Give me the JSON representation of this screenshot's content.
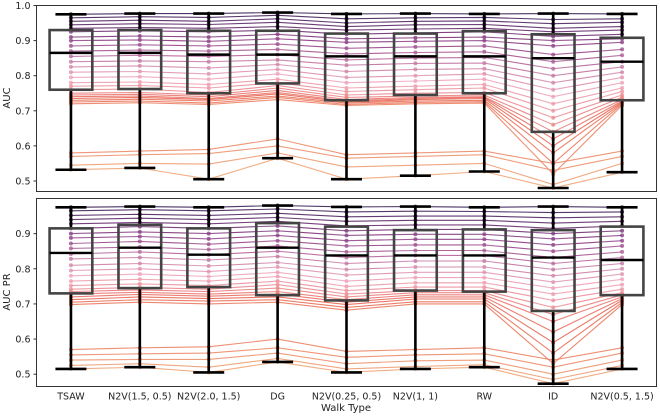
{
  "chart_data": [
    {
      "type": "box+parallel-lines",
      "ylabel": "AUC",
      "xlabel": "",
      "ylim": [
        0.47,
        1.0
      ],
      "yticks": [
        "0.5",
        "0.6",
        "0.7",
        "0.8",
        "0.9",
        "1.0"
      ],
      "categories": [
        "TSAW",
        "N2V(1.5, 0.5)",
        "N2V(2.0, 1.5)",
        "DG",
        "N2V(0.25, 0.5)",
        "N2V(1, 1)",
        "RW",
        "ID",
        "N2V(0.5, 1.5)"
      ],
      "boxes": [
        {
          "min": 0.532,
          "q1": 0.76,
          "median": 0.865,
          "q3": 0.93,
          "max": 0.975
        },
        {
          "min": 0.537,
          "q1": 0.762,
          "median": 0.865,
          "q3": 0.93,
          "max": 0.977
        },
        {
          "min": 0.505,
          "q1": 0.75,
          "median": 0.86,
          "q3": 0.928,
          "max": 0.977
        },
        {
          "min": 0.565,
          "q1": 0.778,
          "median": 0.86,
          "q3": 0.928,
          "max": 0.98
        },
        {
          "min": 0.505,
          "q1": 0.73,
          "median": 0.855,
          "q3": 0.92,
          "max": 0.976
        },
        {
          "min": 0.515,
          "q1": 0.745,
          "median": 0.855,
          "q3": 0.92,
          "max": 0.977
        },
        {
          "min": 0.527,
          "q1": 0.75,
          "median": 0.855,
          "q3": 0.927,
          "max": 0.976
        },
        {
          "min": 0.48,
          "q1": 0.64,
          "median": 0.85,
          "q3": 0.918,
          "max": 0.977
        },
        {
          "min": 0.525,
          "q1": 0.73,
          "median": 0.84,
          "q3": 0.908,
          "max": 0.976
        }
      ],
      "series": [
        {
          "values": [
            0.975,
            0.977,
            0.977,
            0.98,
            0.976,
            0.977,
            0.976,
            0.977,
            0.976
          ]
        },
        {
          "values": [
            0.965,
            0.968,
            0.966,
            0.972,
            0.962,
            0.965,
            0.966,
            0.96,
            0.962
          ]
        },
        {
          "values": [
            0.955,
            0.958,
            0.955,
            0.962,
            0.95,
            0.955,
            0.956,
            0.948,
            0.952
          ]
        },
        {
          "values": [
            0.945,
            0.948,
            0.946,
            0.952,
            0.94,
            0.945,
            0.946,
            0.935,
            0.94
          ]
        },
        {
          "values": [
            0.935,
            0.937,
            0.935,
            0.94,
            0.93,
            0.933,
            0.935,
            0.925,
            0.93
          ]
        },
        {
          "values": [
            0.925,
            0.928,
            0.925,
            0.93,
            0.918,
            0.922,
            0.925,
            0.912,
            0.918
          ]
        },
        {
          "values": [
            0.91,
            0.913,
            0.91,
            0.918,
            0.905,
            0.908,
            0.91,
            0.9,
            0.905
          ]
        },
        {
          "values": [
            0.9,
            0.902,
            0.898,
            0.905,
            0.895,
            0.898,
            0.9,
            0.885,
            0.895
          ]
        },
        {
          "values": [
            0.885,
            0.888,
            0.885,
            0.89,
            0.878,
            0.882,
            0.885,
            0.86,
            0.875
          ]
        },
        {
          "values": [
            0.87,
            0.873,
            0.87,
            0.875,
            0.862,
            0.866,
            0.868,
            0.84,
            0.858
          ]
        },
        {
          "values": [
            0.855,
            0.858,
            0.855,
            0.86,
            0.845,
            0.85,
            0.852,
            0.82,
            0.84
          ]
        },
        {
          "values": [
            0.84,
            0.842,
            0.84,
            0.845,
            0.83,
            0.835,
            0.836,
            0.8,
            0.825
          ]
        },
        {
          "values": [
            0.825,
            0.828,
            0.822,
            0.832,
            0.812,
            0.818,
            0.82,
            0.78,
            0.81
          ]
        },
        {
          "values": [
            0.81,
            0.812,
            0.805,
            0.818,
            0.795,
            0.8,
            0.805,
            0.76,
            0.795
          ]
        },
        {
          "values": [
            0.795,
            0.797,
            0.79,
            0.805,
            0.78,
            0.785,
            0.79,
            0.74,
            0.78
          ]
        },
        {
          "values": [
            0.78,
            0.782,
            0.775,
            0.79,
            0.765,
            0.77,
            0.775,
            0.72,
            0.765
          ]
        },
        {
          "values": [
            0.77,
            0.772,
            0.765,
            0.78,
            0.755,
            0.76,
            0.765,
            0.7,
            0.755
          ]
        },
        {
          "values": [
            0.76,
            0.762,
            0.752,
            0.772,
            0.745,
            0.75,
            0.752,
            0.68,
            0.745
          ]
        },
        {
          "values": [
            0.75,
            0.752,
            0.745,
            0.765,
            0.738,
            0.742,
            0.745,
            0.66,
            0.738
          ]
        },
        {
          "values": [
            0.745,
            0.747,
            0.74,
            0.758,
            0.732,
            0.738,
            0.74,
            0.64,
            0.732
          ]
        },
        {
          "values": [
            0.74,
            0.742,
            0.735,
            0.752,
            0.728,
            0.735,
            0.738,
            0.62,
            0.728
          ]
        },
        {
          "values": [
            0.735,
            0.738,
            0.732,
            0.748,
            0.725,
            0.732,
            0.735,
            0.6,
            0.725
          ]
        },
        {
          "values": [
            0.73,
            0.733,
            0.728,
            0.742,
            0.722,
            0.728,
            0.73,
            0.58,
            0.722
          ]
        },
        {
          "values": [
            0.725,
            0.728,
            0.722,
            0.738,
            0.718,
            0.724,
            0.726,
            0.55,
            0.72
          ]
        },
        {
          "values": [
            0.72,
            0.723,
            0.718,
            0.732,
            0.715,
            0.72,
            0.722,
            0.52,
            0.716
          ]
        },
        {
          "values": [
            0.58,
            0.585,
            0.59,
            0.62,
            0.575,
            0.58,
            0.585,
            0.55,
            0.585
          ]
        },
        {
          "values": [
            0.57,
            0.575,
            0.578,
            0.6,
            0.565,
            0.57,
            0.575,
            0.53,
            0.57
          ]
        },
        {
          "values": [
            0.545,
            0.55,
            0.548,
            0.58,
            0.54,
            0.545,
            0.55,
            0.49,
            0.55
          ]
        },
        {
          "values": [
            0.532,
            0.537,
            0.505,
            0.565,
            0.505,
            0.515,
            0.527,
            0.48,
            0.525
          ]
        }
      ]
    },
    {
      "type": "box+parallel-lines",
      "ylabel": "AUC PR",
      "xlabel": "Walk Type",
      "ylim": [
        0.465,
        1.0
      ],
      "yticks": [
        "0.5",
        "0.6",
        "0.7",
        "0.8",
        "0.9"
      ],
      "categories": [
        "TSAW",
        "N2V(1.5, 0.5)",
        "N2V(2.0, 1.5)",
        "DG",
        "N2V(0.25, 0.5)",
        "N2V(1, 1)",
        "RW",
        "ID",
        "N2V(0.5, 1.5)"
      ],
      "boxes": [
        {
          "min": 0.515,
          "q1": 0.73,
          "median": 0.845,
          "q3": 0.915,
          "max": 0.975
        },
        {
          "min": 0.52,
          "q1": 0.745,
          "median": 0.86,
          "q3": 0.925,
          "max": 0.977
        },
        {
          "min": 0.505,
          "q1": 0.748,
          "median": 0.84,
          "q3": 0.915,
          "max": 0.975
        },
        {
          "min": 0.535,
          "q1": 0.725,
          "median": 0.86,
          "q3": 0.93,
          "max": 0.98
        },
        {
          "min": 0.505,
          "q1": 0.71,
          "median": 0.838,
          "q3": 0.92,
          "max": 0.976
        },
        {
          "min": 0.515,
          "q1": 0.738,
          "median": 0.838,
          "q3": 0.91,
          "max": 0.977
        },
        {
          "min": 0.52,
          "q1": 0.735,
          "median": 0.838,
          "q3": 0.912,
          "max": 0.975
        },
        {
          "min": 0.473,
          "q1": 0.68,
          "median": 0.832,
          "q3": 0.91,
          "max": 0.977
        },
        {
          "min": 0.515,
          "q1": 0.725,
          "median": 0.825,
          "q3": 0.92,
          "max": 0.975
        }
      ],
      "series": [
        {
          "values": [
            0.975,
            0.977,
            0.975,
            0.98,
            0.976,
            0.977,
            0.975,
            0.977,
            0.975
          ]
        },
        {
          "values": [
            0.965,
            0.968,
            0.965,
            0.97,
            0.962,
            0.964,
            0.963,
            0.96,
            0.962
          ]
        },
        {
          "values": [
            0.952,
            0.955,
            0.952,
            0.958,
            0.948,
            0.95,
            0.95,
            0.945,
            0.948
          ]
        },
        {
          "values": [
            0.94,
            0.944,
            0.94,
            0.946,
            0.935,
            0.938,
            0.938,
            0.93,
            0.935
          ]
        },
        {
          "values": [
            0.928,
            0.932,
            0.928,
            0.935,
            0.922,
            0.925,
            0.925,
            0.915,
            0.922
          ]
        },
        {
          "values": [
            0.915,
            0.92,
            0.915,
            0.922,
            0.908,
            0.912,
            0.912,
            0.9,
            0.908
          ]
        },
        {
          "values": [
            0.9,
            0.905,
            0.9,
            0.908,
            0.895,
            0.898,
            0.898,
            0.885,
            0.895
          ]
        },
        {
          "values": [
            0.888,
            0.892,
            0.885,
            0.895,
            0.88,
            0.884,
            0.884,
            0.868,
            0.88
          ]
        },
        {
          "values": [
            0.872,
            0.878,
            0.87,
            0.88,
            0.865,
            0.868,
            0.868,
            0.85,
            0.865
          ]
        },
        {
          "values": [
            0.858,
            0.862,
            0.855,
            0.865,
            0.848,
            0.852,
            0.852,
            0.832,
            0.848
          ]
        },
        {
          "values": [
            0.842,
            0.848,
            0.84,
            0.85,
            0.832,
            0.838,
            0.838,
            0.815,
            0.832
          ]
        },
        {
          "values": [
            0.828,
            0.832,
            0.825,
            0.835,
            0.815,
            0.822,
            0.822,
            0.798,
            0.815
          ]
        },
        {
          "values": [
            0.81,
            0.815,
            0.808,
            0.818,
            0.798,
            0.805,
            0.805,
            0.78,
            0.8
          ]
        },
        {
          "values": [
            0.795,
            0.8,
            0.792,
            0.805,
            0.782,
            0.79,
            0.79,
            0.762,
            0.785
          ]
        },
        {
          "values": [
            0.78,
            0.785,
            0.778,
            0.79,
            0.765,
            0.775,
            0.775,
            0.745,
            0.77
          ]
        },
        {
          "values": [
            0.765,
            0.77,
            0.765,
            0.778,
            0.75,
            0.76,
            0.76,
            0.728,
            0.755
          ]
        },
        {
          "values": [
            0.752,
            0.757,
            0.752,
            0.765,
            0.738,
            0.748,
            0.748,
            0.71,
            0.742
          ]
        },
        {
          "values": [
            0.742,
            0.747,
            0.742,
            0.755,
            0.728,
            0.738,
            0.738,
            0.69,
            0.732
          ]
        },
        {
          "values": [
            0.735,
            0.74,
            0.735,
            0.745,
            0.72,
            0.732,
            0.732,
            0.67,
            0.726
          ]
        },
        {
          "values": [
            0.728,
            0.733,
            0.728,
            0.735,
            0.712,
            0.726,
            0.726,
            0.65,
            0.72
          ]
        },
        {
          "values": [
            0.72,
            0.727,
            0.722,
            0.728,
            0.705,
            0.72,
            0.72,
            0.62,
            0.715
          ]
        },
        {
          "values": [
            0.712,
            0.72,
            0.715,
            0.72,
            0.698,
            0.714,
            0.714,
            0.59,
            0.71
          ]
        },
        {
          "values": [
            0.705,
            0.712,
            0.708,
            0.712,
            0.69,
            0.706,
            0.706,
            0.56,
            0.704
          ]
        },
        {
          "values": [
            0.698,
            0.705,
            0.7,
            0.705,
            0.682,
            0.7,
            0.7,
            0.53,
            0.698
          ]
        },
        {
          "values": [
            0.57,
            0.575,
            0.578,
            0.6,
            0.565,
            0.57,
            0.575,
            0.54,
            0.575
          ]
        },
        {
          "values": [
            0.555,
            0.558,
            0.56,
            0.575,
            0.548,
            0.555,
            0.558,
            0.52,
            0.56
          ]
        },
        {
          "values": [
            0.54,
            0.542,
            0.542,
            0.56,
            0.53,
            0.538,
            0.54,
            0.5,
            0.54
          ]
        },
        {
          "values": [
            0.525,
            0.53,
            0.52,
            0.545,
            0.515,
            0.522,
            0.527,
            0.485,
            0.525
          ]
        },
        {
          "values": [
            0.515,
            0.52,
            0.505,
            0.535,
            0.505,
            0.515,
            0.52,
            0.473,
            0.515
          ]
        }
      ]
    }
  ]
}
